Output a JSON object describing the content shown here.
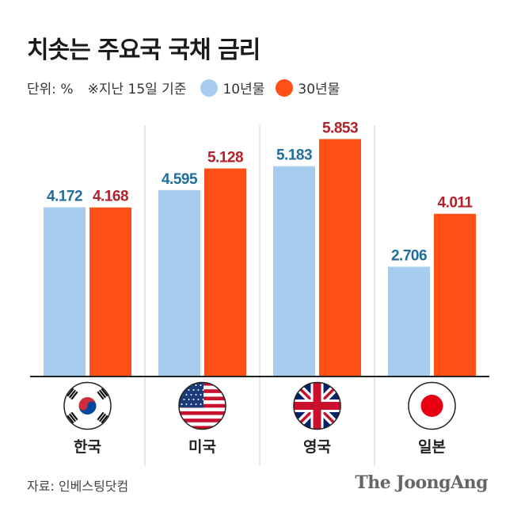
{
  "title": "치솟는 주요국 국채 금리",
  "unit_note": "단위: %",
  "date_note": "※지난 15일 기준",
  "source": "자료: 인베스팅닷컴",
  "brand": "The JoongAng",
  "colors": {
    "series_10y": "#a7cdee",
    "series_30y": "#ff4e16",
    "label_10y": "#1f6e9c",
    "label_30y": "#b3202a"
  },
  "chart_data": {
    "type": "bar",
    "categories": [
      "한국",
      "미국",
      "영국",
      "일본"
    ],
    "series": [
      {
        "name": "10년물",
        "values": [
          4.172,
          4.595,
          5.183,
          2.706
        ],
        "labels": [
          "4.172",
          "4.595",
          "5.183",
          "2.706"
        ]
      },
      {
        "name": "30년물",
        "values": [
          4.168,
          5.128,
          5.853,
          4.011
        ],
        "labels": [
          "4.168",
          "5.128",
          "5.853",
          "4.011"
        ]
      }
    ],
    "ylim": [
      0,
      6.35
    ],
    "grid": false,
    "legend": "top"
  }
}
